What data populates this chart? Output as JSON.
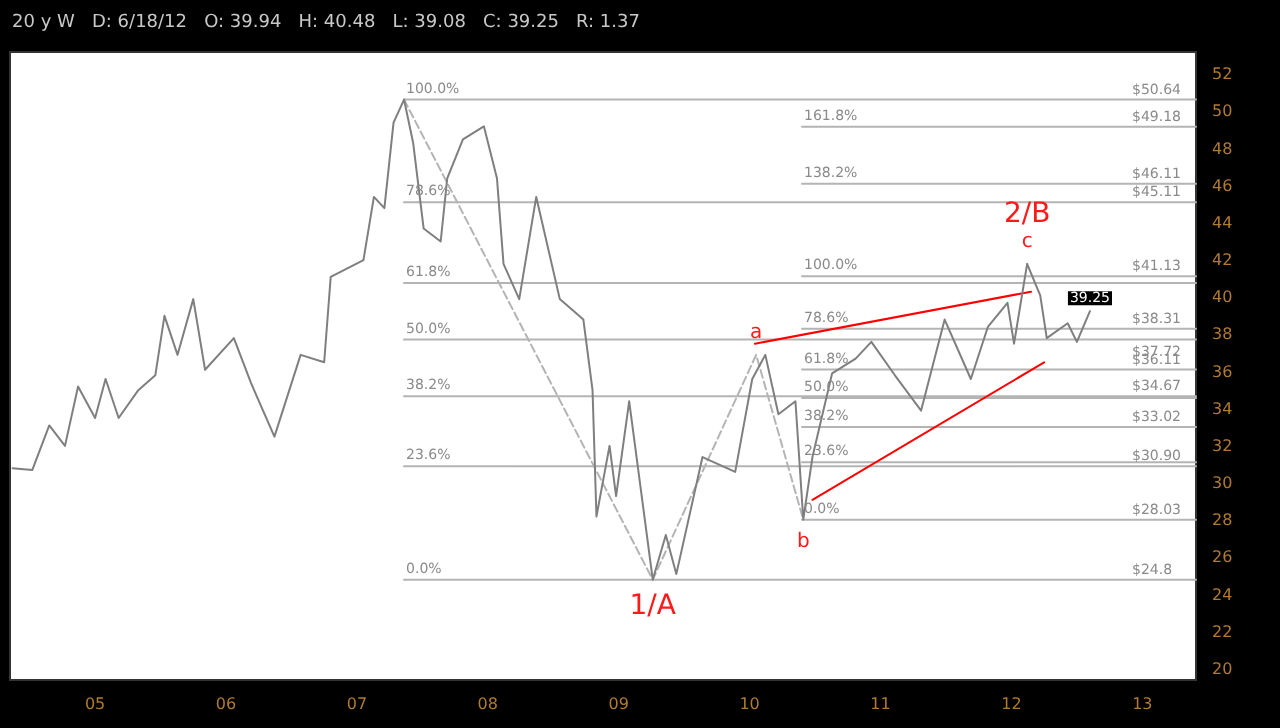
{
  "chart_data": {
    "type": "line",
    "subtitle": "20 y W   D: 6/18/12   O: 39.94   H: 40.48   L: 39.08   C: 39.25   R: 1.37",
    "xlim": [
      2004.35,
      2013.41
    ],
    "xticks": [
      {
        "value": 2005,
        "label": "05"
      },
      {
        "value": 2006,
        "label": "06"
      },
      {
        "value": 2007,
        "label": "07"
      },
      {
        "value": 2008,
        "label": "08"
      },
      {
        "value": 2009,
        "label": "09"
      },
      {
        "value": 2010,
        "label": "10"
      },
      {
        "value": 2011,
        "label": "11"
      },
      {
        "value": 2012,
        "label": "12"
      },
      {
        "value": 2013,
        "label": "13"
      }
    ],
    "ylim": [
      19.4,
      53.2
    ],
    "yticks": [
      20,
      22,
      24,
      26,
      28,
      30,
      32,
      34,
      36,
      38,
      40,
      42,
      44,
      46,
      48,
      50,
      52
    ],
    "series": [
      {
        "color": "#7f7f7f",
        "x": [
          2004.37,
          2004.52,
          2004.65,
          2004.77,
          2004.87,
          2005.0,
          2005.08,
          2005.18,
          2005.33,
          2005.46,
          2005.53,
          2005.63,
          2005.75,
          2005.84,
          2006.06,
          2006.19,
          2006.37,
          2006.57,
          2006.75,
          2006.8,
          2007.05,
          2007.13,
          2007.21,
          2007.28,
          2007.36,
          2007.43,
          2007.51,
          2007.64,
          2007.69,
          2007.81,
          2007.97,
          2008.07,
          2008.12,
          2008.24,
          2008.37,
          2008.55,
          2008.73,
          2008.8,
          2008.83,
          2008.93,
          2008.98,
          2009.08,
          2009.26,
          2009.36,
          2009.44,
          2009.64,
          2009.89,
          2010.02,
          2010.12,
          2010.22,
          2010.35,
          2010.41,
          2010.48,
          2010.63,
          2010.81,
          2010.93,
          2011.11,
          2011.31,
          2011.49,
          2011.69,
          2011.82,
          2011.97,
          2012.02,
          2012.12,
          2012.22,
          2012.27,
          2012.43,
          2012.5,
          2012.6
        ],
        "values": [
          30.8,
          30.7,
          33.1,
          32.0,
          35.2,
          33.5,
          35.6,
          33.5,
          35.0,
          35.8,
          39.0,
          36.9,
          39.9,
          36.1,
          37.8,
          35.4,
          32.5,
          36.9,
          36.5,
          41.1,
          42.0,
          45.4,
          44.8,
          49.4,
          50.64,
          48.3,
          43.7,
          43.0,
          46.4,
          48.5,
          49.2,
          46.4,
          41.8,
          39.9,
          45.4,
          39.9,
          38.8,
          35.0,
          28.2,
          32.0,
          29.3,
          34.4,
          24.8,
          27.2,
          25.1,
          31.4,
          30.6,
          35.6,
          36.9,
          33.7,
          34.4,
          28.03,
          31.4,
          35.9,
          36.7,
          37.6,
          35.8,
          33.9,
          38.8,
          35.6,
          38.4,
          39.7,
          37.5,
          41.8,
          40.1,
          37.8,
          38.6,
          37.6,
          39.25
        ],
        "value_labels": [
          null,
          null,
          null,
          null,
          null,
          null,
          null,
          null,
          null,
          null,
          null,
          null,
          null,
          null,
          null,
          null,
          null,
          null,
          null,
          null,
          null,
          null,
          null,
          null,
          null,
          null,
          null,
          null,
          null,
          null,
          null,
          null,
          null,
          null,
          null,
          null,
          null,
          null,
          null,
          null,
          null,
          null,
          null,
          null,
          null,
          null,
          null,
          null,
          null,
          null,
          null,
          null,
          null,
          null,
          null,
          null,
          null,
          null,
          null,
          null,
          null,
          null,
          null,
          null,
          null,
          null,
          null,
          null,
          "39.25"
        ]
      },
      {
        "name": "$50.64",
        "color": "#b4b4b4",
        "x": [
          2007.36,
          2013.41
        ],
        "values": [
          50.64,
          50.64
        ]
      },
      {
        "name": "$45.11",
        "color": "#b4b4b4",
        "x": [
          2007.36,
          2013.41
        ],
        "values": [
          45.11,
          45.11
        ]
      },
      {
        "color": "#b4b4b4",
        "x": [
          2007.36,
          2013.41
        ],
        "values": [
          40.77,
          40.77
        ]
      },
      {
        "name": "$37.72",
        "color": "#b4b4b4",
        "x": [
          2007.36,
          2013.41
        ],
        "values": [
          37.72,
          37.72
        ]
      },
      {
        "name": "$34.67",
        "color": "#b4b4b4",
        "x": [
          2007.36,
          2013.41
        ],
        "values": [
          34.67,
          34.67
        ]
      },
      {
        "name": "$30.90",
        "color": "#b4b4b4",
        "x": [
          2007.36,
          2013.41
        ],
        "values": [
          30.9,
          30.9
        ]
      },
      {
        "name": "$24.8",
        "color": "#b4b4b4",
        "x": [
          2007.36,
          2013.41
        ],
        "values": [
          24.8,
          24.8
        ]
      },
      {
        "name": "$49.18",
        "color": "#b4b4b4",
        "x": [
          2010.4,
          2013.41
        ],
        "values": [
          49.18,
          49.18
        ]
      },
      {
        "name": "$46.11",
        "color": "#b4b4b4",
        "x": [
          2010.4,
          2013.41
        ],
        "values": [
          46.11,
          46.11
        ]
      },
      {
        "name": "$41.13",
        "color": "#b4b4b4",
        "x": [
          2010.4,
          2013.41
        ],
        "values": [
          41.13,
          41.13
        ]
      },
      {
        "name": "$38.31",
        "color": "#b4b4b4",
        "x": [
          2010.4,
          2013.41
        ],
        "values": [
          38.31,
          38.31
        ]
      },
      {
        "name": "$36.11",
        "color": "#b4b4b4",
        "x": [
          2010.4,
          2013.41
        ],
        "values": [
          36.11,
          36.11
        ]
      },
      {
        "color": "#b4b4b4",
        "x": [
          2010.4,
          2013.41
        ],
        "values": [
          34.58,
          34.58
        ]
      },
      {
        "name": "$33.02",
        "color": "#b4b4b4",
        "x": [
          2010.4,
          2013.41
        ],
        "values": [
          33.02,
          33.02
        ]
      },
      {
        "color": "#b4b4b4",
        "x": [
          2010.4,
          2013.41
        ],
        "values": [
          31.12,
          31.12
        ]
      },
      {
        "name": "$28.03",
        "color": "#b4b4b4",
        "x": [
          2010.4,
          2013.41
        ],
        "values": [
          28.03,
          28.03
        ]
      },
      {
        "color": "#b4b4b4",
        "line_style": "dashed",
        "x": [
          2007.36,
          2009.26,
          2010.05,
          2010.41
        ],
        "values": [
          50.64,
          24.8,
          36.9,
          28.03
        ]
      },
      {
        "color": "#ff0000",
        "x": [
          2010.04,
          2012.15
        ],
        "values": [
          37.5,
          40.3
        ]
      },
      {
        "color": "#ff0000",
        "x": [
          2010.48,
          2012.25
        ],
        "values": [
          29.1,
          36.5
        ]
      }
    ],
    "annotations": [
      {
        "text": "100.0%",
        "x": 2007.36,
        "y": 50.64
      },
      {
        "text": "78.6%",
        "x": 2007.36,
        "y": 45.11
      },
      {
        "text": "61.8%",
        "x": 2007.36,
        "y": 40.77
      },
      {
        "text": "50.0%",
        "x": 2007.36,
        "y": 37.72
      },
      {
        "text": "38.2%",
        "x": 2007.36,
        "y": 34.67
      },
      {
        "text": "23.6%",
        "x": 2007.36,
        "y": 30.9
      },
      {
        "text": "0.0%",
        "x": 2007.36,
        "y": 24.8
      },
      {
        "text": "161.8%",
        "x": 2010.4,
        "y": 49.18
      },
      {
        "text": "138.2%",
        "x": 2010.4,
        "y": 46.11
      },
      {
        "text": "100.0%",
        "x": 2010.4,
        "y": 41.13
      },
      {
        "text": "78.6%",
        "x": 2010.4,
        "y": 38.31
      },
      {
        "text": "61.8%",
        "x": 2010.4,
        "y": 36.11
      },
      {
        "text": "50.0%",
        "x": 2010.4,
        "y": 34.58
      },
      {
        "text": "38.2%",
        "x": 2010.4,
        "y": 33.02
      },
      {
        "text": "23.6%",
        "x": 2010.4,
        "y": 31.12
      },
      {
        "text": "0.0%",
        "x": 2010.4,
        "y": 28.03
      },
      {
        "text": "1/A",
        "x": 2009.26,
        "y": 24.8
      },
      {
        "text": "a",
        "x": 2010.05,
        "y": 36.9
      },
      {
        "text": "b",
        "x": 2010.41,
        "y": 28.03
      },
      {
        "text": "c",
        "x": 2012.12,
        "y": 41.8
      },
      {
        "text": "2/B",
        "x": 2012.12,
        "y": 41.8
      }
    ]
  }
}
